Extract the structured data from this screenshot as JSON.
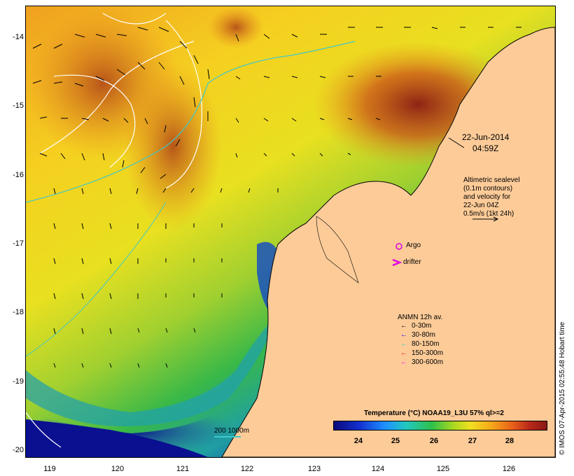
{
  "map": {
    "timestamp_date": "22-Jun-2014",
    "timestamp_time": "04:59Z",
    "altimetry_lines": [
      "Altimetric sealevel",
      "(0.1m contours)",
      "and velocity for",
      "22-Jun 04Z",
      "0.5m/s (1kt 24h)"
    ],
    "y_ticks": [
      "-14",
      "-15",
      "-16",
      "-17",
      "-18",
      "-19",
      "-20"
    ],
    "x_ticks": [
      "119",
      "120",
      "121",
      "122",
      "123",
      "124",
      "125",
      "126"
    ],
    "argo_label": "Argo",
    "drifter_label": "drifter",
    "anmn_title": "ANMN 12h av.",
    "anmn_items": [
      {
        "label": "0-30m",
        "color": "#000000"
      },
      {
        "label": "30-80m",
        "color": "#0000ff"
      },
      {
        "label": "80-150m",
        "color": "#30d0d0"
      },
      {
        "label": "150-300m",
        "color": "#ff0000"
      },
      {
        "label": "300-600m",
        "color": "#ff00ff"
      }
    ],
    "colorbar_title": "Temperature (°C) NOAA19_L3U 57% ql>=2",
    "colorbar_ticks": [
      "24",
      "25",
      "26",
      "27",
      "28"
    ],
    "isobath_label": "200  1000m",
    "credit": "© IMOS 07-Apr-2015 02:55:48 Hobart time",
    "colors": {
      "land": "#fccb98",
      "deep_sst": "#0a1090",
      "bathy": "#40c8c8",
      "argo": "#e000e0"
    }
  }
}
